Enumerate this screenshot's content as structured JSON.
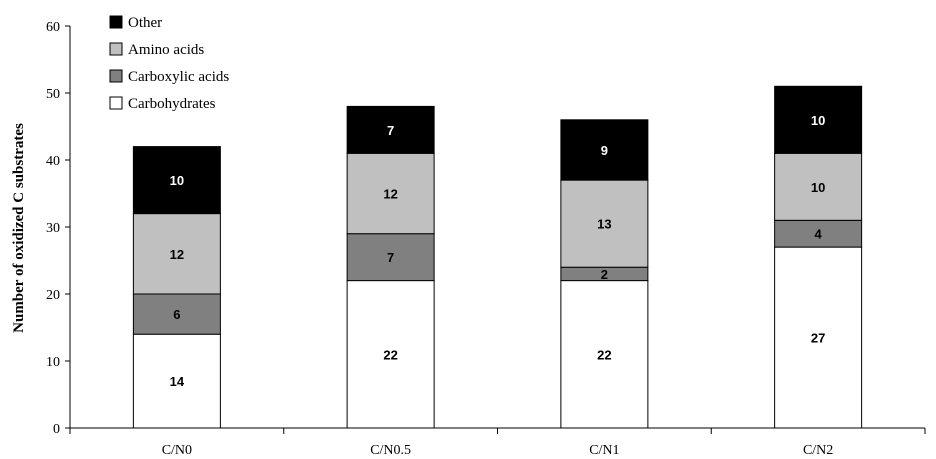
{
  "chart_data": {
    "type": "bar",
    "stacked": true,
    "categories": [
      "C/N0",
      "C/N0.5",
      "C/N1",
      "C/N2"
    ],
    "series": [
      {
        "name": "Carbohydrates",
        "values": [
          14,
          22,
          22,
          27
        ],
        "color": "#ffffff",
        "label_color": "#000000"
      },
      {
        "name": "Carboxylic acids",
        "values": [
          6,
          7,
          2,
          4
        ],
        "color": "#808080",
        "label_color": "#000000"
      },
      {
        "name": "Amino acids",
        "values": [
          12,
          12,
          13,
          10
        ],
        "color": "#c0c0c0",
        "label_color": "#000000"
      },
      {
        "name": "Other",
        "values": [
          10,
          7,
          9,
          10
        ],
        "color": "#000000",
        "label_color": "#ffffff"
      }
    ],
    "legend_order": [
      "Other",
      "Amino acids",
      "Carboxylic acids",
      "Carbohydrates"
    ],
    "ylabel": "Number of oxidized C substrates",
    "xlabel": "",
    "ylim": [
      0,
      60
    ],
    "yticks": [
      0,
      10,
      20,
      30,
      40,
      50,
      60
    ],
    "grid": false,
    "legend_position": "top-left"
  }
}
